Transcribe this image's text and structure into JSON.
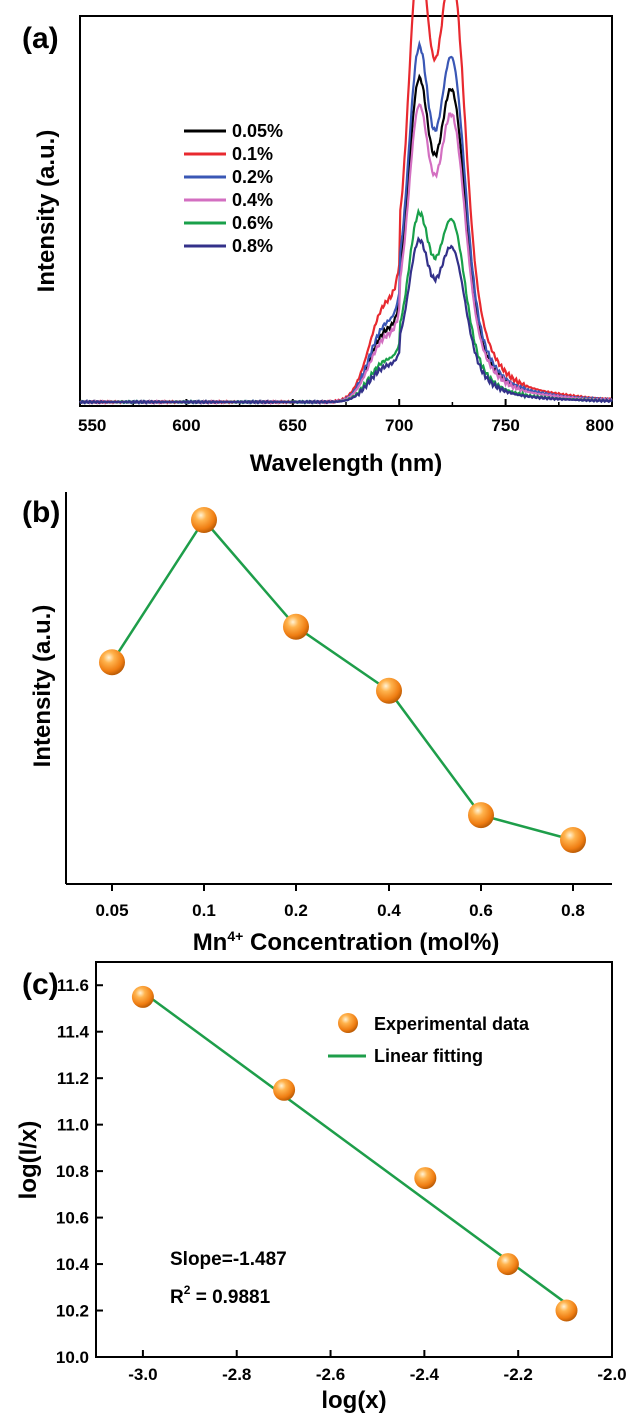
{
  "panels": {
    "a": {
      "label": "(a)"
    },
    "b": {
      "label": "(b)"
    },
    "c": {
      "label": "(c)"
    }
  },
  "chart_data": [
    {
      "type": "line",
      "xlabel": "Wavelength (nm)",
      "ylabel": "Intensity (a.u.)",
      "xlim": [
        550,
        800
      ],
      "xticks": [
        "550",
        "600",
        "650",
        "700",
        "750",
        "800"
      ],
      "y_tick_labels_shown": false,
      "legend_position": "upper-left",
      "peak_positions_nm": [
        709,
        725
      ],
      "series": [
        {
          "name": "0.05%",
          "color": "#000000",
          "peak1": 0.72,
          "peak2": 0.65,
          "baseline": 0.0
        },
        {
          "name": "0.1%",
          "color": "#e8292f",
          "peak1": 1.0,
          "peak2": 0.9,
          "baseline": 0.0
        },
        {
          "name": "0.2%",
          "color": "#3a57b5",
          "peak1": 0.79,
          "peak2": 0.72,
          "baseline": 0.0
        },
        {
          "name": "0.4%",
          "color": "#d36fc1",
          "peak1": 0.66,
          "peak2": 0.6,
          "baseline": 0.0
        },
        {
          "name": "0.6%",
          "color": "#19a04a",
          "peak1": 0.42,
          "peak2": 0.38,
          "baseline": 0.0
        },
        {
          "name": "0.8%",
          "color": "#33318a",
          "peak1": 0.36,
          "peak2": 0.32,
          "baseline": 0.0
        }
      ]
    },
    {
      "type": "line",
      "xlabel": "Mn4+ Concentration (mol%)",
      "xlabel_base": "Mn",
      "xlabel_sup": "4+",
      "xlabel_rest": " Concentration (mol%)",
      "ylabel": "Intensity (a.u.)",
      "categories": [
        "0.05",
        "0.1",
        "0.2",
        "0.4",
        "0.6",
        "0.8"
      ],
      "values": [
        0.6,
        1.0,
        0.7,
        0.52,
        0.17,
        0.1
      ],
      "y_tick_labels_shown": false,
      "line_color": "#1e9e4a",
      "marker_color": "#f28b1e"
    },
    {
      "type": "scatter",
      "xlabel": "log(x)",
      "ylabel": "log(I/x)",
      "xlim": [
        -3.1,
        -2.0
      ],
      "ylim": [
        10.0,
        11.7
      ],
      "xticks": [
        "-3.0",
        "-2.8",
        "-2.6",
        "-2.4",
        "-2.2",
        "-2.0"
      ],
      "yticks": [
        "10.0",
        "10.2",
        "10.4",
        "10.6",
        "10.8",
        "11.0",
        "11.2",
        "11.4",
        "11.6"
      ],
      "points": {
        "x": [
          -3.0,
          -2.699,
          -2.398,
          -2.222,
          -2.097
        ],
        "y": [
          11.55,
          11.15,
          10.77,
          10.4,
          10.2
        ]
      },
      "fit": {
        "x": [
          -3.0,
          -2.097
        ],
        "y": [
          11.57,
          10.23
        ]
      },
      "legend": {
        "points": "Experimental data",
        "line": "Linear fitting"
      },
      "legend_position": "top-right",
      "annotations": {
        "slope": "Slope=-1.487",
        "r2_base": "R",
        "r2_sup": "2",
        "r2_rest": " = 0.9881"
      },
      "line_color": "#1e9e4a",
      "marker_color": "#f28b1e"
    }
  ]
}
